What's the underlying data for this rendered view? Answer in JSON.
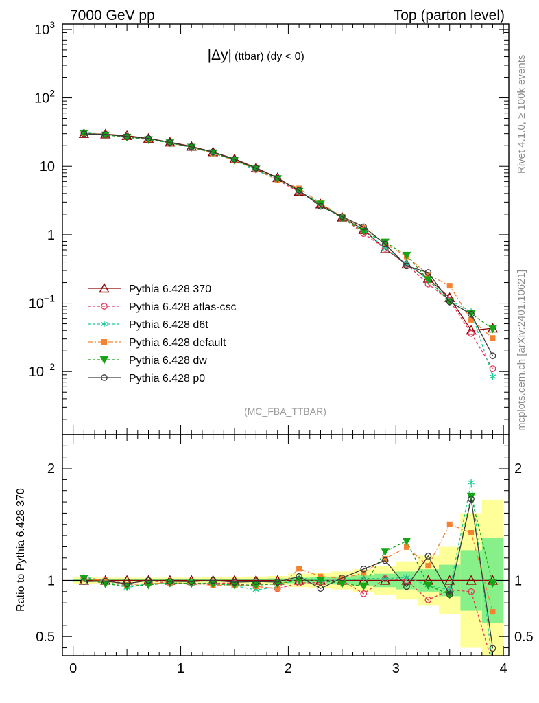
{
  "header": {
    "left": "7000 GeV pp",
    "right": "Top (parton level)"
  },
  "side": {
    "rivet": "Rivet 4.1.0, ≥ 100k events",
    "mcplots": "mcplots.cern.ch [arXiv:2401.10621]"
  },
  "colors": {
    "p370": "#8b0000",
    "atlas": "#e8335a",
    "d6t": "#1fcc9a",
    "default": "#f58231",
    "dw": "#16a516",
    "p0": "#3b3b3b",
    "band_yellow": "#ffff99",
    "band_green": "#88f088"
  },
  "chart_data": {
    "type": "line",
    "title_main": "|Δy|",
    "title_suffix": "(ttbar) (dy < 0)",
    "watermark": "(MC_FBA_TTBAR)",
    "xlabel": "",
    "ylabel_ratio": "Ratio to Pythia 6.428 370",
    "xlim": [
      -0.1,
      4.05
    ],
    "ylim_log": [
      0.0012,
      1200
    ],
    "ylim_ratio": [
      0.33,
      2.3
    ],
    "xticks": [
      "0",
      "1",
      "2",
      "3",
      "4"
    ],
    "yticks_main": [
      {
        "v": 1000,
        "base": "10",
        "exp": "3"
      },
      {
        "v": 100,
        "base": "10",
        "exp": "2"
      },
      {
        "v": 10,
        "base": "10",
        "exp": ""
      },
      {
        "v": 1,
        "base": "1",
        "exp": ""
      },
      {
        "v": 0.1,
        "base": "10",
        "exp": "−1"
      },
      {
        "v": 0.01,
        "base": "10",
        "exp": "−2"
      }
    ],
    "yticks_ratio": [
      "0.5",
      "1",
      "2"
    ],
    "x": [
      0.1,
      0.3,
      0.5,
      0.7,
      0.9,
      1.1,
      1.3,
      1.5,
      1.7,
      1.9,
      2.1,
      2.3,
      2.5,
      2.7,
      2.9,
      3.1,
      3.3,
      3.5,
      3.7,
      3.9
    ],
    "band_yellow": [
      0.03,
      0.025,
      0.025,
      0.025,
      0.025,
      0.025,
      0.03,
      0.03,
      0.035,
      0.04,
      0.06,
      0.07,
      0.08,
      0.1,
      0.13,
      0.17,
      0.22,
      0.3,
      0.6,
      0.72
    ],
    "band_green": [
      0.012,
      0.01,
      0.01,
      0.01,
      0.01,
      0.01,
      0.012,
      0.012,
      0.015,
      0.018,
      0.025,
      0.03,
      0.035,
      0.045,
      0.06,
      0.08,
      0.1,
      0.14,
      0.27,
      0.38
    ],
    "series": [
      {
        "key": "p370",
        "name": "Pythia 6.428 370",
        "marker": "triangle-open",
        "dash": "",
        "values": [
          30.0,
          29.5,
          28.0,
          25.5,
          22.5,
          19.5,
          16.2,
          12.8,
          9.5,
          6.8,
          4.3,
          2.8,
          1.8,
          1.18,
          0.62,
          0.37,
          0.23,
          0.12,
          0.04,
          0.043
        ]
      },
      {
        "key": "atlas",
        "name": "Pythia 6.428 atlas-csc",
        "marker": "circle-open",
        "dash": "4,3",
        "values": [
          30.6,
          29.5,
          27.2,
          25.5,
          21.9,
          19.0,
          15.8,
          12.5,
          9.0,
          6.3,
          4.2,
          2.75,
          1.8,
          1.04,
          0.63,
          0.37,
          0.19,
          0.11,
          0.036,
          0.011
        ]
      },
      {
        "key": "d6t",
        "name": "Pythia 6.428 d6t",
        "marker": "star",
        "dash": "4,3",
        "values": [
          31.0,
          29.3,
          26.2,
          24.8,
          21.9,
          18.9,
          15.8,
          12.2,
          8.7,
          6.4,
          4.4,
          2.8,
          1.8,
          1.2,
          0.63,
          0.38,
          0.22,
          0.11,
          0.075,
          0.0085
        ]
      },
      {
        "key": "default",
        "name": "Pythia 6.428 default",
        "marker": "square-filled",
        "dash": "7,3,2,3",
        "values": [
          30.4,
          29.5,
          26.9,
          24.8,
          22.0,
          19.0,
          15.5,
          12.3,
          9.0,
          6.3,
          4.75,
          2.9,
          1.83,
          1.26,
          0.74,
          0.48,
          0.26,
          0.18,
          0.057,
          0.031
        ]
      },
      {
        "key": "dw",
        "name": "Pythia 6.428 dw",
        "marker": "triangle-down-filled",
        "dash": "4,3",
        "values": [
          30.6,
          28.6,
          26.6,
          24.5,
          22.0,
          19.0,
          15.7,
          12.3,
          9.1,
          6.6,
          4.3,
          2.8,
          1.75,
          1.12,
          0.78,
          0.5,
          0.22,
          0.105,
          0.07,
          0.042
        ]
      },
      {
        "key": "p0",
        "name": "Pythia 6.428 p0",
        "marker": "circle-open",
        "dash": "",
        "values": [
          29.7,
          29.3,
          27.2,
          25.5,
          22.3,
          19.3,
          16.2,
          12.6,
          9.4,
          6.7,
          4.45,
          2.6,
          1.84,
          1.3,
          0.73,
          0.35,
          0.28,
          0.105,
          0.069,
          0.017
        ]
      }
    ]
  }
}
